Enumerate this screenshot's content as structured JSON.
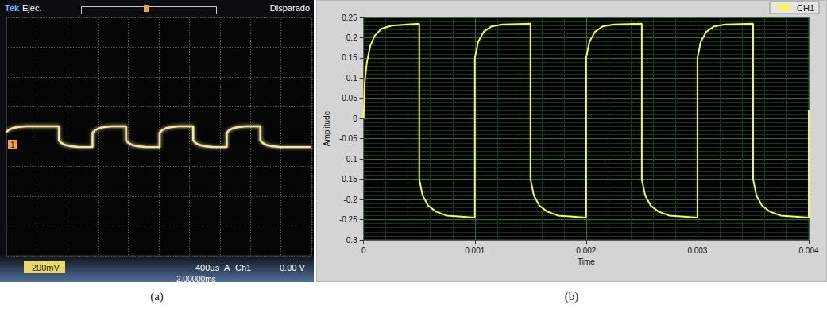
{
  "chart_data": [
    {
      "type": "line",
      "title": "(a)",
      "annotations": [
        "Tek",
        "Ejec.",
        "Disparado",
        "1",
        "200mV",
        "400µs",
        "A",
        "Ch1",
        "0.00 V",
        "2.00000ms"
      ],
      "color": "#f2e6a4",
      "x": [
        0,
        0.03,
        0.08,
        0.15,
        0.25,
        0.69,
        0.69,
        0.72,
        0.77,
        0.84,
        0.94,
        1.13,
        1.13,
        1.16,
        1.21,
        1.28,
        1.38,
        1.57,
        1.57,
        1.6,
        1.65,
        1.72,
        1.82,
        2.01,
        2.01,
        2.04,
        2.09,
        2.16,
        2.26,
        2.45,
        2.45,
        2.48,
        2.53,
        2.6,
        2.7,
        2.89,
        2.89,
        2.92,
        2.97,
        3.04,
        3.14,
        3.33,
        3.33,
        3.36,
        3.41,
        3.48,
        3.58,
        4
      ],
      "values": [
        0.03,
        0.045,
        0.057,
        0.064,
        0.069,
        0.07,
        -0.025,
        -0.042,
        -0.056,
        -0.064,
        -0.069,
        -0.07,
        0.025,
        0.042,
        0.056,
        0.064,
        0.069,
        0.07,
        -0.025,
        -0.042,
        -0.056,
        -0.064,
        -0.069,
        -0.07,
        0.025,
        0.042,
        0.056,
        0.064,
        0.069,
        0.07,
        -0.025,
        -0.042,
        -0.056,
        -0.064,
        -0.069,
        -0.07,
        0.025,
        0.042,
        0.056,
        0.064,
        0.069,
        0.07,
        -0.025,
        -0.042,
        -0.056,
        -0.064,
        -0.069,
        -0.07
      ],
      "xlim": [
        0,
        4
      ],
      "xticks": [
        0,
        0.4,
        0.8,
        1.2,
        1.6,
        2,
        2.4,
        2.8,
        3.2,
        3.6,
        4
      ],
      "ylim": [
        -0.8,
        0.8
      ],
      "yticks": [
        -0.8,
        -0.6,
        -0.4,
        -0.2,
        0,
        0.2,
        0.4,
        0.6,
        0.8
      ],
      "grid": true,
      "tick_labels": false
    },
    {
      "type": "line",
      "title": "(b)",
      "x_label": "Time",
      "y_label": "Amplitude",
      "series": [
        {
          "name": "CH1",
          "color": "#ffff1a",
          "x": [
            0,
            1e-05,
            3e-05,
            6e-05,
            0.0001,
            0.00016,
            0.00025,
            0.0005,
            0.0005,
            0.00053,
            0.00058,
            0.00065,
            0.00075,
            0.001,
            0.001,
            0.00103,
            0.00108,
            0.00115,
            0.00125,
            0.0015,
            0.0015,
            0.00153,
            0.00158,
            0.00165,
            0.00175,
            0.002,
            0.002,
            0.00203,
            0.00208,
            0.00215,
            0.00225,
            0.0025,
            0.0025,
            0.00253,
            0.00258,
            0.00265,
            0.00275,
            0.003,
            0.003,
            0.00303,
            0.00308,
            0.00315,
            0.00325,
            0.0035,
            0.0035,
            0.00353,
            0.00358,
            0.00365,
            0.00375,
            0.004,
            0.004
          ],
          "values": [
            0,
            0.09,
            0.14,
            0.18,
            0.205,
            0.222,
            0.23,
            0.235,
            -0.15,
            -0.19,
            -0.215,
            -0.23,
            -0.24,
            -0.245,
            0.15,
            0.19,
            0.215,
            0.228,
            0.233,
            0.235,
            -0.15,
            -0.19,
            -0.215,
            -0.23,
            -0.24,
            -0.245,
            0.15,
            0.19,
            0.215,
            0.228,
            0.233,
            0.235,
            -0.15,
            -0.19,
            -0.215,
            -0.23,
            -0.24,
            -0.245,
            0.15,
            0.19,
            0.215,
            0.228,
            0.233,
            0.235,
            -0.15,
            -0.19,
            -0.215,
            -0.23,
            -0.24,
            -0.245,
            0.02
          ]
        }
      ],
      "xlim": [
        0,
        0.004
      ],
      "xticks": [
        0,
        0.001,
        0.002,
        0.003,
        0.004
      ],
      "ylim": [
        -0.3,
        0.25
      ],
      "yticks": [
        -0.3,
        -0.25,
        -0.2,
        -0.15,
        -0.1,
        -0.05,
        0,
        0.05,
        0.1,
        0.15,
        0.2,
        0.25
      ],
      "grid": true,
      "legend": "top-right"
    }
  ]
}
